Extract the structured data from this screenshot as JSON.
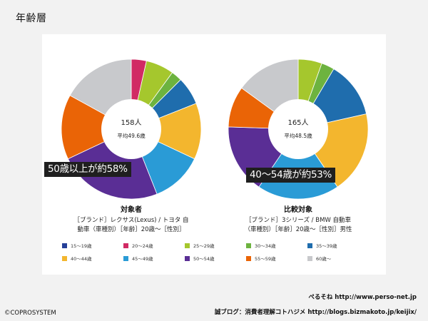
{
  "page": {
    "title": "年齢層",
    "copyright": "©COPROSYSTEM",
    "credit_line1": "ぺるそね  http://www.perso-net.jp",
    "credit_line2": "誠ブログ：消費者理解コトハジメ  http://blogs.bizmakoto.jp/keijix/"
  },
  "chart_data": [
    {
      "type": "pie",
      "title": "対象者",
      "subtitle_lines": [
        "［ブランド］レクサス(Lexus) / トヨタ 自",
        "動車（車種別）［年齢］20歳〜［性別］"
      ],
      "center_count": "158人",
      "center_avg": "平均49.6歳",
      "callout": "50歳以上が約58%",
      "categories": [
        "15〜19歳",
        "20〜24歳",
        "25〜29歳",
        "30〜34歳",
        "35〜39歳",
        "40〜44歳",
        "45〜49歳",
        "50〜54歳",
        "55〜59歳",
        "60歳〜"
      ],
      "values": [
        0,
        3.5,
        6.5,
        2.5,
        6.5,
        13,
        12,
        24,
        15,
        17
      ]
    },
    {
      "type": "pie",
      "title": "比較対象",
      "subtitle_lines": [
        "［ブランド］3シリーズ / BMW 自動車",
        "（車種別）［年齢］20歳〜［性別］男性"
      ],
      "center_count": "165人",
      "center_avg": "平均48.5歳",
      "callout": "40〜54歳が約53%",
      "categories": [
        "15〜19歳",
        "20〜24歳",
        "25〜29歳",
        "30〜34歳",
        "35〜39歳",
        "40〜44歳",
        "45〜49歳",
        "50〜54歳",
        "55〜59歳",
        "60歳〜"
      ],
      "values": [
        0,
        0,
        5.5,
        3,
        13,
        19,
        19,
        16,
        9.5,
        15
      ]
    }
  ],
  "legend": [
    {
      "label": "15〜19歳",
      "color": "#253f98"
    },
    {
      "label": "20〜24歳",
      "color": "#d12a64"
    },
    {
      "label": "25〜29歳",
      "color": "#a5c72d"
    },
    {
      "label": "30〜34歳",
      "color": "#6db33f"
    },
    {
      "label": "35〜39歳",
      "color": "#1f6dad"
    },
    {
      "label": "40〜44歳",
      "color": "#f3b62e"
    },
    {
      "label": "45〜49歳",
      "color": "#2a9bd6"
    },
    {
      "label": "50〜54歳",
      "color": "#5a2e95"
    },
    {
      "label": "55〜59歳",
      "color": "#ea6406"
    },
    {
      "label": "60歳〜",
      "color": "#c8c9cc"
    }
  ]
}
